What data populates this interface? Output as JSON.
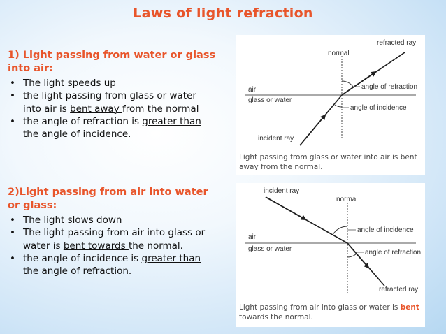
{
  "title": "Laws of light refraction",
  "section1": {
    "heading_line1": "1) Light passing from water or glass",
    "heading_line2": "into air:",
    "bullet": "•",
    "b1_pre": "The light ",
    "b1_u": "speeds up",
    "b2_l1": "the light passing from glass or water",
    "b2_pre": "into air is ",
    "b2_u": "bent away ",
    "b2_post": "from the normal",
    "b2_trail": " ",
    "b3_pre": "the angle of refraction is ",
    "b3_u": "greater than",
    "b3_l2": "the angle of incidence."
  },
  "section2": {
    "heading_line1": "2)Light passing from air into water",
    "heading_line2": "or glass:",
    "bullet": "•",
    "b1_pre": "The light ",
    "b1_u": "slows down ",
    "b2_l1": "The light passing from air into glass or",
    "b2_pre": "water is ",
    "b2_u": "bent towards ",
    "b2_post": "the normal.",
    "b3_pre": "the angle of incidence is ",
    "b3_u": "greater than",
    "b3_l2": "the angle of refraction."
  },
  "diagram1": {
    "refracted_ray": "refracted ray",
    "normal": "normal",
    "air": "air",
    "glass_or_water": "glass or water",
    "angle_of_refraction": "angle of refraction",
    "angle_of_incidence": "angle of incidence",
    "incident_ray": "incident ray",
    "caption_l1": "Light passing from glass or water into air is bent",
    "caption_l2": "away from the normal."
  },
  "diagram2": {
    "incident_ray": "incident ray",
    "normal": "normal",
    "air": "air",
    "glass_or_water": "glass or water",
    "angle_of_incidence": "angle of incidence",
    "angle_of_refraction": "angle of refraction",
    "refracted_ray": "refracted ray",
    "caption_pre": "Light passing from air into glass or water is ",
    "caption_bent": "bent",
    "caption_l2": "towards the normal."
  },
  "colors": {
    "accent": "#e8552b",
    "text": "#111111",
    "caption": "#4a4a4a"
  }
}
